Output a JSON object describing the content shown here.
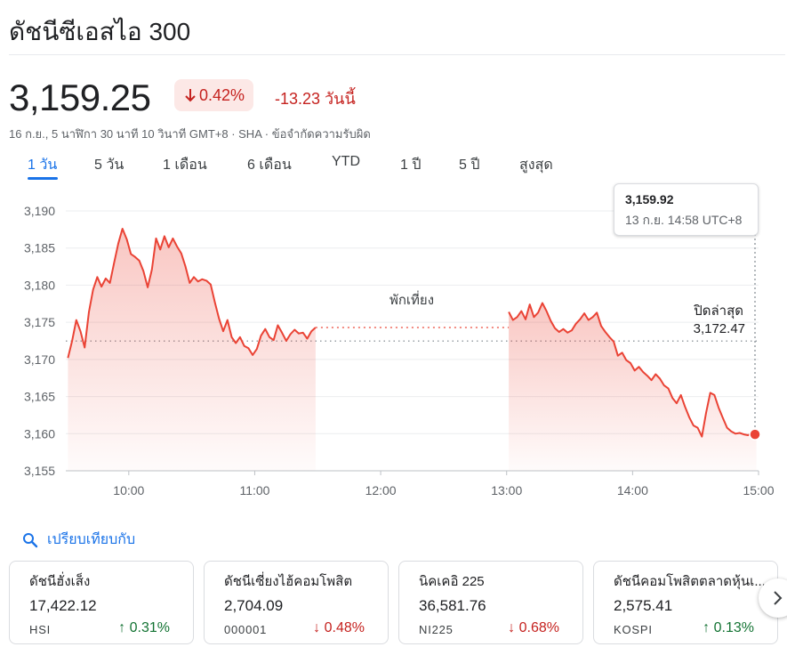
{
  "header": {
    "title": "ดัชนีซีเอสไอ 300",
    "price": "3,159.25",
    "change_percent": "0.42%",
    "change_value": "-13.23 วันนี้",
    "meta": "16 ก.ย., 5 นาฬิกา 30 นาที 10 วินาที GMT+8 · SHA · ข้อจำกัดความรับผิด"
  },
  "tabs": [
    "1 วัน",
    "5 วัน",
    "1 เดือน",
    "6 เดือน",
    "YTD",
    "1 ปี",
    "5 ปี",
    "สูงสุด"
  ],
  "tooltip": {
    "value": "3,159.92",
    "time": "13 ก.ย. 14:58 UTC+8"
  },
  "colors": {
    "down_red": "#c5221f",
    "line_red": "#ea4335",
    "up_green": "#137333",
    "accent_blue": "#1a73e8"
  },
  "chart_data": {
    "type": "line",
    "xlabel": "",
    "ylabel": "",
    "x_ticks": [
      "10:00",
      "11:00",
      "12:00",
      "13:00",
      "14:00",
      "15:00"
    ],
    "y_ticks": [
      "3,190",
      "3,185",
      "3,180",
      "3,175",
      "3,170",
      "3,165",
      "3,160",
      "3,155"
    ],
    "ylim": [
      3155,
      3192
    ],
    "xlim": [
      "09:30",
      "15:00"
    ],
    "grid": true,
    "lunch_break_label": "พักเที่ยง",
    "previous_close_label": "ปิดล่าสุด",
    "previous_close": 3172.47,
    "previous_close_text": "3,172.47",
    "series": [
      {
        "session": "morning",
        "x": [
          "09:31",
          "09:33",
          "09:35",
          "09:37",
          "09:39",
          "09:41",
          "09:43",
          "09:45",
          "09:47",
          "09:49",
          "09:51",
          "09:53",
          "09:55",
          "09:57",
          "09:59",
          "10:01",
          "10:03",
          "10:05",
          "10:07",
          "10:09",
          "10:11",
          "10:13",
          "10:15",
          "10:17",
          "10:19",
          "10:21",
          "10:23",
          "10:25",
          "10:27",
          "10:29",
          "10:31",
          "10:33",
          "10:35",
          "10:37",
          "10:39",
          "10:41",
          "10:43",
          "10:45",
          "10:47",
          "10:49",
          "10:51",
          "10:53",
          "10:55",
          "10:57",
          "10:59",
          "11:01",
          "11:03",
          "11:05",
          "11:07",
          "11:09",
          "11:11",
          "11:13",
          "11:15",
          "11:17",
          "11:19",
          "11:21",
          "11:23",
          "11:25",
          "11:27",
          "11:29"
        ],
        "values": [
          3170.2,
          3172.5,
          3175.3,
          3173.8,
          3171.6,
          3176.4,
          3179.4,
          3181.1,
          3179.8,
          3180.9,
          3180.3,
          3183.0,
          3185.6,
          3187.6,
          3186.2,
          3184.2,
          3183.8,
          3183.3,
          3181.9,
          3179.7,
          3182.1,
          3186.3,
          3184.8,
          3186.6,
          3185.1,
          3186.3,
          3185.2,
          3184.3,
          3182.5,
          3180.3,
          3181.1,
          3180.5,
          3180.8,
          3180.6,
          3180.1,
          3177.7,
          3175.5,
          3173.8,
          3175.3,
          3173.0,
          3172.2,
          3173.0,
          3171.8,
          3171.5,
          3170.6,
          3171.4,
          3173.2,
          3174.1,
          3173.0,
          3172.6,
          3174.6,
          3173.6,
          3172.5,
          3173.4,
          3174.0,
          3173.5,
          3173.6,
          3172.8,
          3173.8,
          3174.3
        ]
      },
      {
        "session": "afternoon",
        "x": [
          "13:01",
          "13:03",
          "13:05",
          "13:07",
          "13:09",
          "13:11",
          "13:13",
          "13:15",
          "13:17",
          "13:19",
          "13:21",
          "13:23",
          "13:25",
          "13:27",
          "13:29",
          "13:31",
          "13:33",
          "13:35",
          "13:37",
          "13:39",
          "13:41",
          "13:43",
          "13:45",
          "13:47",
          "13:49",
          "13:51",
          "13:53",
          "13:55",
          "13:57",
          "13:59",
          "14:01",
          "14:03",
          "14:05",
          "14:07",
          "14:09",
          "14:11",
          "14:13",
          "14:15",
          "14:17",
          "14:19",
          "14:21",
          "14:23",
          "14:25",
          "14:27",
          "14:29",
          "14:31",
          "14:33",
          "14:35",
          "14:37",
          "14:39",
          "14:41",
          "14:43",
          "14:45",
          "14:47",
          "14:49",
          "14:51",
          "14:53",
          "14:55",
          "14:57",
          "14:59"
        ],
        "values": [
          3176.4,
          3175.3,
          3175.7,
          3176.5,
          3175.4,
          3177.4,
          3175.7,
          3176.3,
          3177.6,
          3176.5,
          3175.2,
          3174.2,
          3173.7,
          3174.1,
          3173.6,
          3173.9,
          3174.8,
          3175.4,
          3176.2,
          3175.3,
          3175.7,
          3176.3,
          3174.5,
          3173.7,
          3173.0,
          3172.4,
          3170.5,
          3170.9,
          3169.9,
          3169.5,
          3168.5,
          3169.0,
          3168.3,
          3167.8,
          3167.2,
          3168.0,
          3167.4,
          3166.5,
          3166.1,
          3164.8,
          3164.1,
          3165.2,
          3163.6,
          3162.2,
          3161.1,
          3160.8,
          3159.6,
          3162.8,
          3165.5,
          3165.2,
          3163.5,
          3162.1,
          3160.8,
          3160.3,
          3160.0,
          3160.1,
          3159.9,
          3159.8,
          3160.1,
          3159.9
        ]
      }
    ]
  },
  "compare": {
    "label": "เปรียบเทียบกับ"
  },
  "cards": [
    {
      "name": "ดัชนีฮั่งเส็ง",
      "price": "17,422.12",
      "symbol": "HSI",
      "change": "0.31%",
      "direction": "up",
      "arrow": "↑"
    },
    {
      "name": "ดัชนีเซี่ยงไฮ้คอมโพสิต",
      "price": "2,704.09",
      "symbol": "000001",
      "change": "0.48%",
      "direction": "down",
      "arrow": "↓"
    },
    {
      "name": "นิคเคอิ 225",
      "price": "36,581.76",
      "symbol": "NI225",
      "change": "0.68%",
      "direction": "down",
      "arrow": "↓"
    },
    {
      "name": "ดัชนีคอมโพสิตตลาดหุ้นเ...",
      "price": "2,575.41",
      "symbol": "KOSPI",
      "change": "0.13%",
      "direction": "up",
      "arrow": "↑"
    }
  ]
}
